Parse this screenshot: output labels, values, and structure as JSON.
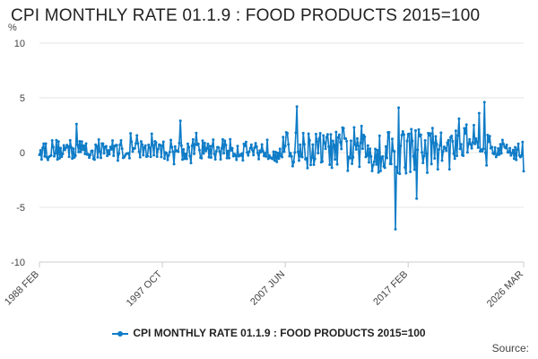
{
  "chart_data": {
    "type": "line",
    "title": "CPI MONTHLY RATE 01.1.9 : FOOD PRODUCTS 2015=100",
    "unit_label": "%",
    "ylim": [
      -10,
      10
    ],
    "y_ticks": [
      10,
      5,
      0,
      -5,
      -10
    ],
    "x_ticks": [
      "1988 FEB",
      "1997 OCT",
      "2007 JUN",
      "2017 FEB",
      "2026 MAR"
    ],
    "x_tick_index": [
      0,
      116,
      232,
      348,
      457
    ],
    "x_range": [
      "1988 FEB",
      "2026 MAR"
    ],
    "color": "#0f7cc7",
    "series": [
      {
        "name": "CPI MONTHLY RATE 01.1.9 : FOOD PRODUCTS 2015=100",
        "start": "1988 FEB",
        "end": "2026 MAR",
        "approx_values_note": "monthly series, 458 points",
        "key_points": [
          {
            "x": "1988 FEB",
            "y": -0.2
          },
          {
            "x": "1991 JAN",
            "y": 2.6
          },
          {
            "x": "1999 MAR",
            "y": 2.9
          },
          {
            "x": "2008 MAY",
            "y": 4.2
          },
          {
            "x": "2016 FEB",
            "y": -7.0
          },
          {
            "x": "2016 MAY",
            "y": 4.1
          },
          {
            "x": "2017 OCT",
            "y": -4.2
          },
          {
            "x": "2023 FEB",
            "y": 4.6
          },
          {
            "x": "2026 MAR",
            "y": -1.7
          }
        ]
      }
    ]
  },
  "legend": {
    "label": "CPI MONTHLY RATE 01.1.9 : FOOD PRODUCTS 2015=100"
  },
  "source": {
    "label": "Source:"
  }
}
